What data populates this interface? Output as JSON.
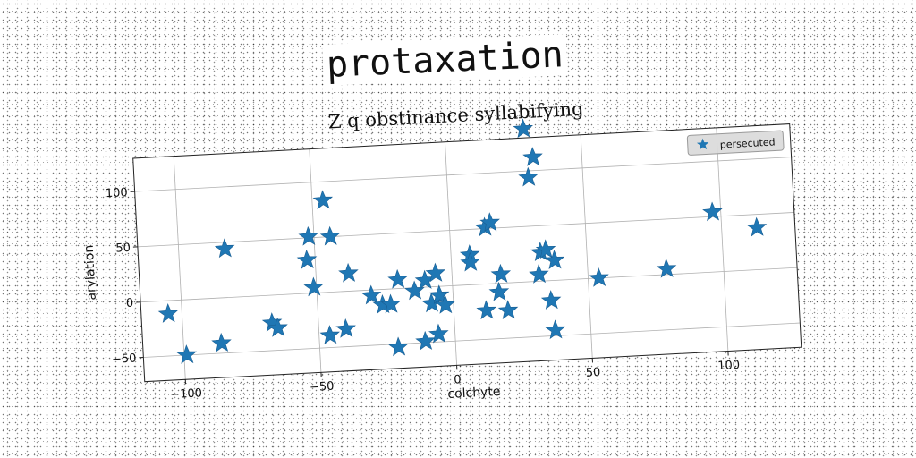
{
  "header": {
    "title": "protaxation"
  },
  "chart_data": {
    "type": "scatter",
    "title": "Z q obstinance syllabifying",
    "xlabel": "colchyte",
    "ylabel": "arylation",
    "xlim": [
      -115,
      127
    ],
    "ylim": [
      -72,
      130
    ],
    "xticks": [
      -100,
      -50,
      0,
      50,
      100
    ],
    "yticks": [
      -50,
      0,
      50,
      100
    ],
    "grid": true,
    "legend": "top-right",
    "marker": "star",
    "color": "#1f77b4",
    "series": [
      {
        "name": "persecuted",
        "points": [
          [
            -105,
            -12
          ],
          [
            -99,
            -50
          ],
          [
            -86,
            -41
          ],
          [
            -83,
            44
          ],
          [
            -67,
            -25
          ],
          [
            -65,
            -30
          ],
          [
            -46,
            83
          ],
          [
            -44,
            50
          ],
          [
            -52,
            51
          ],
          [
            -53,
            30
          ],
          [
            -51,
            5
          ],
          [
            -46,
            -39
          ],
          [
            -40,
            -34
          ],
          [
            -38,
            16
          ],
          [
            -30,
            -5
          ],
          [
            -26,
            -14
          ],
          [
            -23,
            -14
          ],
          [
            -20,
            8
          ],
          [
            -21,
            -53
          ],
          [
            -14,
            -3
          ],
          [
            -10,
            6
          ],
          [
            -11,
            -49
          ],
          [
            -8,
            -15
          ],
          [
            -6,
            -43
          ],
          [
            -6,
            12
          ],
          [
            -5,
            -8
          ],
          [
            -3,
            -17
          ],
          [
            7,
            27
          ],
          [
            7,
            20
          ],
          [
            12,
            -24
          ],
          [
            13,
            51
          ],
          [
            15,
            55
          ],
          [
            17,
            -8
          ],
          [
            18,
            8
          ],
          [
            20,
            -25
          ],
          [
            32,
            6
          ],
          [
            33,
            26
          ],
          [
            35,
            28
          ],
          [
            38,
            18
          ],
          [
            36,
            -18
          ],
          [
            37,
            -45
          ],
          [
            29,
            138
          ],
          [
            32,
            112
          ],
          [
            30,
            94
          ],
          [
            54,
            0
          ],
          [
            79,
            5
          ],
          [
            97,
            54
          ],
          [
            113,
            38
          ]
        ]
      }
    ]
  }
}
